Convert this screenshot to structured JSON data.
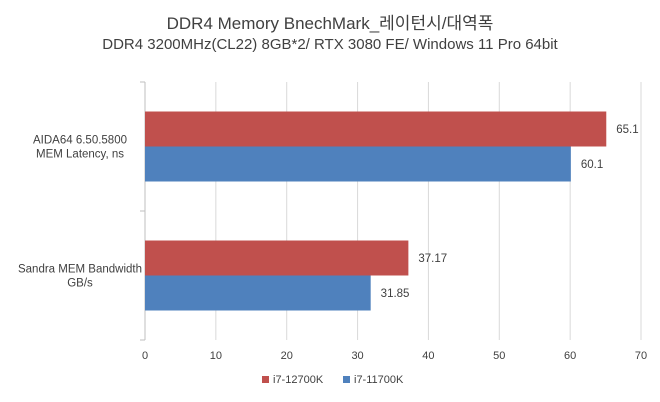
{
  "chart_data": {
    "type": "bar",
    "orientation": "horizontal",
    "title": "DDR4 Memory  BnechMark_레이턴시/대역폭",
    "subtitle": "DDR4 3200MHz(CL22) 8GB*2/ RTX 3080 FE/ Windows 11 Pro 64bit",
    "categories": [
      [
        "AIDA64 6.50.5800",
        "MEM Latency, ns"
      ],
      [
        "Sandra MEM Bandwidth",
        "GB/s"
      ]
    ],
    "series": [
      {
        "name": "i7-12700K",
        "color": "#c0504d",
        "values": [
          65.1,
          37.17
        ],
        "labels": [
          "65.1",
          "37.17"
        ]
      },
      {
        "name": "i7-11700K",
        "color": "#4f81bd",
        "values": [
          60.1,
          31.85
        ],
        "labels": [
          "60.1",
          "31.85"
        ]
      }
    ],
    "xlim": [
      0,
      70
    ],
    "xticks": [
      0,
      10,
      20,
      30,
      40,
      50,
      60,
      70
    ],
    "grid": true,
    "legend_position": "bottom"
  }
}
